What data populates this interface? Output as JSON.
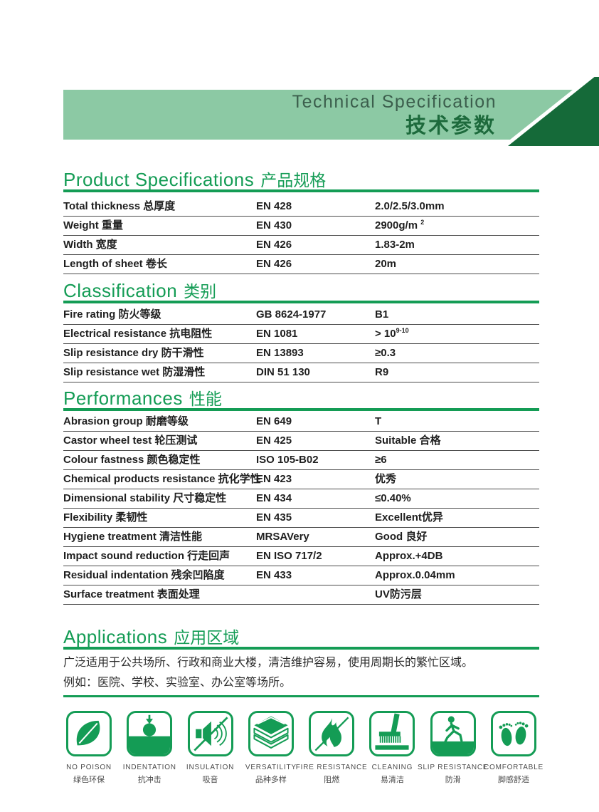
{
  "banner": {
    "title_en": "Technical Specification",
    "title_zh": "技术参数"
  },
  "sections": [
    {
      "id": "product_specs",
      "title_en": "Product Specifications",
      "title_zh": "产品规格",
      "rows": [
        {
          "label": "Total thickness 总厚度",
          "standard": "EN 428",
          "value": "2.0/2.5/3.0mm"
        },
        {
          "label": "Weight 重量",
          "standard": "EN 430",
          "value": "2900g/m ",
          "sup": "2"
        },
        {
          "label": "Width 宽度",
          "standard": "EN 426",
          "value": "1.83-2m"
        },
        {
          "label": "Length of sheet 卷长",
          "standard": "EN 426",
          "value": "20m"
        }
      ]
    },
    {
      "id": "classification",
      "title_en": "Classification",
      "title_zh": "类别",
      "rows": [
        {
          "label": "Fire rating 防火等级",
          "standard": "GB 8624-1977",
          "value": "B1"
        },
        {
          "label": "Electrical resistance 抗电阻性",
          "standard": "EN 1081",
          "value": "> 10",
          "sup": "9-10"
        },
        {
          "label": "Slip resistance dry 防干滑性",
          "standard": "EN 13893",
          "value": "≥0.3"
        },
        {
          "label": "Slip resistance wet 防湿滑性",
          "standard": "DIN 51 130",
          "value": "R9"
        }
      ]
    },
    {
      "id": "performances",
      "title_en": "Performances",
      "title_zh": "性能",
      "rows": [
        {
          "label": "Abrasion group 耐磨等级",
          "standard": "EN 649",
          "value": "T"
        },
        {
          "label": "Castor wheel test 轮压测试",
          "standard": "EN 425",
          "value": "Suitable 合格"
        },
        {
          "label": "Colour fastness 颜色稳定性",
          "standard": "ISO 105-B02",
          "value": "≥6"
        },
        {
          "label": "Chemical products resistance 抗化学性",
          "standard": "EN 423",
          "value": "优秀"
        },
        {
          "label": "Dimensional stability 尺寸稳定性",
          "standard": "EN 434",
          "value": "≤0.40%"
        },
        {
          "label": "Flexibility 柔韧性",
          "standard": "EN 435",
          "value": "Excellent优异"
        },
        {
          "label": "Hygiene treatment 清洁性能",
          "standard": "MRSAVery",
          "value": "Good 良好"
        },
        {
          "label": "Impact sound reduction 行走回声",
          "standard": "EN ISO 717/2",
          "value": "Approx.+4DB"
        },
        {
          "label": "Residual indentation 残余凹陷度",
          "standard": "EN 433",
          "value": "Approx.0.04mm"
        },
        {
          "label": "Surface treatment 表面处理",
          "standard": "",
          "value": "UV防污层"
        }
      ]
    }
  ],
  "applications": {
    "title_en": "Applications",
    "title_zh": "应用区域",
    "lines": [
      "广泛适用于公共场所、行政和商业大楼，清洁维护容易，使用周期长的繁忙区域。",
      "例如：医院、学校、实验室、办公室等场所。"
    ]
  },
  "features": [
    {
      "icon": "leaf-icon",
      "label_en": "NO POISON",
      "label_zh": "绿色环保"
    },
    {
      "icon": "indentation-ball-icon",
      "label_en": "INDENTATION",
      "label_zh": "抗冲击"
    },
    {
      "icon": "sound-insulation-icon",
      "label_en": "INSULATION",
      "label_zh": "吸音"
    },
    {
      "icon": "layers-icon",
      "label_en": "VERSATILITY",
      "label_zh": "品种多样"
    },
    {
      "icon": "no-fire-icon",
      "label_en": "FIRE RESISTANCE",
      "label_zh": "阻燃"
    },
    {
      "icon": "broom-icon",
      "label_en": "CLEANING",
      "label_zh": "易清洁"
    },
    {
      "icon": "slip-person-icon",
      "label_en": "SLIP RESISTANCE",
      "label_zh": "防滑"
    },
    {
      "icon": "footprints-icon",
      "label_en": "COMFORTABLE",
      "label_zh": "脚感舒适"
    }
  ],
  "colors": {
    "accent_green": "#149C55",
    "banner_light_green": "#8CC9A4",
    "banner_dark_green": "#156A39",
    "banner_title_en": "#3C5F4D",
    "banner_title_zh": "#1D6A3C",
    "table_text": "#1F1F1F",
    "divider": "#4C4C4C",
    "feature_label": "#4A4A4A"
  }
}
